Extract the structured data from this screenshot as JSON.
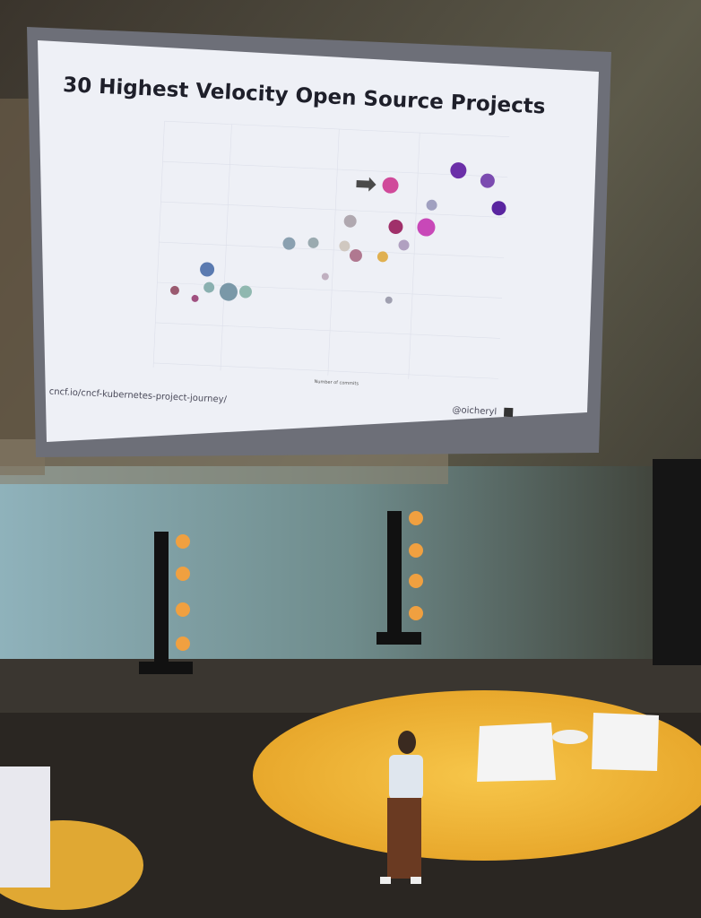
{
  "slide": {
    "title": "30 Highest Velocity Open Source Projects",
    "x_axis_label": "Number of commits",
    "url": "cncf.io/cncf-kubernetes-project-journey/",
    "handle": "@oicheryl"
  }
}
